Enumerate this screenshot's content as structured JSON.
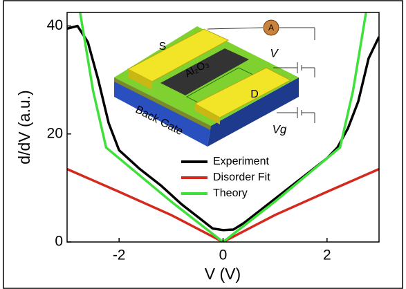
{
  "chart_data": {
    "type": "line",
    "y_label": "d/dV (a.u.)",
    "x_label": "V (V)",
    "xlim": [
      -3,
      3
    ],
    "xticks": [
      -2,
      0,
      2
    ],
    "ylim": [
      0,
      42.5
    ],
    "yticks": [
      0,
      20,
      40
    ],
    "legend": "lower-center",
    "series": [
      {
        "name": "Experiment",
        "color": "#000000",
        "x": [
          -3,
          -2.8,
          -2.6,
          -2.4,
          -2.2,
          -2,
          -1.6,
          -1.2,
          -0.8,
          -0.4,
          -0.2,
          0,
          0.2,
          0.4,
          0.8,
          1.2,
          1.6,
          2,
          2.2,
          2.4,
          2.6,
          2.8,
          3
        ],
        "values": [
          39.5,
          40,
          37,
          30,
          22,
          17,
          13.5,
          10.5,
          7,
          4,
          2.5,
          2.2,
          2.3,
          3.5,
          6.5,
          9.5,
          12.5,
          15.5,
          17.5,
          21,
          26,
          34,
          38
        ]
      },
      {
        "name": "Disorder Fit",
        "color": "#d42a1e",
        "x": [
          -3,
          -2,
          -1,
          -0.5,
          0,
          0.5,
          1,
          2,
          3
        ],
        "values": [
          13.5,
          9.3,
          5,
          2.5,
          0,
          2.5,
          5,
          9.3,
          13.5
        ]
      },
      {
        "name": "Theory",
        "color": "#3ee03a",
        "x": [
          -2.75,
          -2.5,
          -2.25,
          -1,
          0,
          1,
          2.25,
          2.5,
          2.75
        ],
        "values": [
          42.5,
          28,
          17.5,
          7.5,
          0,
          7.5,
          17.5,
          28,
          42.5
        ]
      }
    ],
    "inset": {
      "source": "S",
      "drain": "D",
      "dielectric": "Al₂O₃",
      "gate": "Back Gate",
      "bias": "V",
      "gate_voltage": "Vg",
      "ammeter": "A"
    }
  }
}
